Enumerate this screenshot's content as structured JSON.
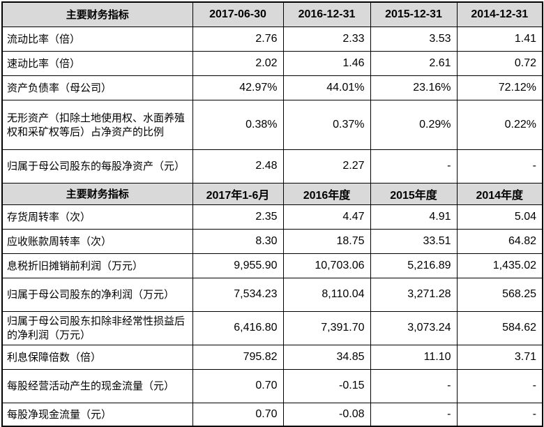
{
  "header1": {
    "label": "主要财务指标",
    "cols": [
      "2017-06-30",
      "2016-12-31",
      "2015-12-31",
      "2014-12-31"
    ]
  },
  "rows1": [
    {
      "label": "流动比率（倍）",
      "values": [
        "2.76",
        "2.33",
        "3.53",
        "1.41"
      ]
    },
    {
      "label": "速动比率（倍）",
      "values": [
        "2.02",
        "1.46",
        "2.61",
        "0.72"
      ]
    },
    {
      "label": "资产负债率（母公司）",
      "values": [
        "42.97%",
        "44.01%",
        "23.16%",
        "72.12%"
      ]
    },
    {
      "label": "无形资产（扣除土地使用权、水面养殖权和采矿权等后）占净资产的比例",
      "values": [
        "0.38%",
        "0.37%",
        "0.29%",
        "0.22%"
      ]
    },
    {
      "label": "归属于母公司股东的每股净资产（元）",
      "values": [
        "2.48",
        "2.27",
        "-",
        "-"
      ]
    }
  ],
  "header2": {
    "label": "主要财务指标",
    "cols": [
      "2017年1-6月",
      "2016年度",
      "2015年度",
      "2014年度"
    ]
  },
  "rows2": [
    {
      "label": "存货周转率（次）",
      "values": [
        "2.35",
        "4.47",
        "4.91",
        "5.04"
      ]
    },
    {
      "label": "应收账款周转率（次）",
      "values": [
        "8.30",
        "18.75",
        "33.51",
        "64.82"
      ]
    },
    {
      "label": "息税折旧摊销前利润（万元）",
      "values": [
        "9,955.90",
        "10,703.06",
        "5,216.89",
        "1,435.02"
      ]
    },
    {
      "label": "归属于母公司股东的净利润（万元）",
      "values": [
        "7,534.23",
        "8,110.04",
        "3,271.28",
        "568.25"
      ]
    },
    {
      "label": "归属于母公司股东扣除非经常性损益后的净利润（万元）",
      "values": [
        "6,416.80",
        "7,391.70",
        "3,073.24",
        "584.62"
      ]
    },
    {
      "label": "利息保障倍数（倍）",
      "values": [
        "795.82",
        "34.85",
        "11.10",
        "3.71"
      ]
    },
    {
      "label": "每股经营活动产生的现金流量（元）",
      "values": [
        "0.70",
        "-0.15",
        "-",
        "-"
      ]
    },
    {
      "label": "每股净现金流量（元）",
      "values": [
        "0.70",
        "-0.08",
        "-",
        "-"
      ]
    }
  ]
}
